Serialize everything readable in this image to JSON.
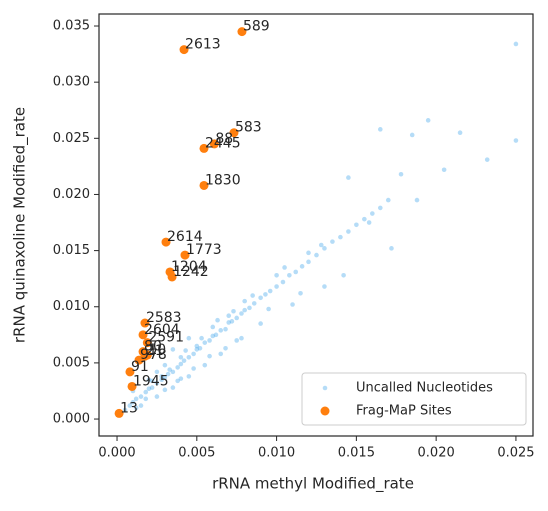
{
  "chart_data": {
    "type": "scatter",
    "xlabel": "rRNA methyl Modified_rate",
    "ylabel": "rRNA quinaxoline Modified_rate",
    "xlim": [
      -0.00113,
      0.02607
    ],
    "ylim": [
      -0.00151,
      0.03607
    ],
    "xticks": [
      {
        "value": 0,
        "label": "0.000"
      },
      {
        "value": 0.005,
        "label": "0.005"
      },
      {
        "value": 0.01,
        "label": "0.010"
      },
      {
        "value": 0.015,
        "label": "0.015"
      },
      {
        "value": 0.02,
        "label": "0.020"
      },
      {
        "value": 0.025,
        "label": "0.025"
      }
    ],
    "yticks": [
      {
        "value": 0,
        "label": "0.000"
      },
      {
        "value": 0.005,
        "label": "0.005"
      },
      {
        "value": 0.01,
        "label": "0.010"
      },
      {
        "value": 0.015,
        "label": "0.015"
      },
      {
        "value": 0.02,
        "label": "0.020"
      },
      {
        "value": 0.025,
        "label": "0.025"
      },
      {
        "value": 0.03,
        "label": "0.030"
      },
      {
        "value": 0.035,
        "label": "0.035"
      }
    ],
    "legend": "lower right",
    "series": [
      {
        "name": "Uncalled Nucleotides",
        "color": "#2b9be8",
        "x": [
          0.0005,
          0.0008,
          0.001,
          0.0012,
          0.0015,
          0.0018,
          0.002,
          0.0022,
          0.0025,
          0.0028,
          0.003,
          0.0032,
          0.0035,
          0.0038,
          0.004,
          0.0042,
          0.0045,
          0.0048,
          0.005,
          0.0052,
          0.0055,
          0.0058,
          0.006,
          0.0062,
          0.0065,
          0.0068,
          0.007,
          0.0072,
          0.0075,
          0.0078,
          0.008,
          0.0083,
          0.0086,
          0.009,
          0.0093,
          0.0096,
          0.01,
          0.0104,
          0.0108,
          0.0112,
          0.0116,
          0.012,
          0.0125,
          0.013,
          0.0135,
          0.014,
          0.0145,
          0.015,
          0.0155,
          0.016,
          0.0165,
          0.017,
          0.0178,
          0.0185,
          0.0195,
          0.0205,
          0.0215,
          0.0232,
          0.025,
          0.025,
          0.001,
          0.0015,
          0.002,
          0.0025,
          0.003,
          0.0035,
          0.004,
          0.0045,
          0.005,
          0.0055,
          0.006,
          0.0065,
          0.007,
          0.0075,
          0.008,
          0.009,
          0.01,
          0.011,
          0.012,
          0.013,
          0.0025,
          0.003,
          0.0035,
          0.004,
          0.0045,
          0.0012,
          0.0018,
          0.0022,
          0.0028,
          0.0033,
          0.0038,
          0.0043,
          0.0048,
          0.0053,
          0.0058,
          0.0063,
          0.0068,
          0.0073,
          0.0078,
          0.0085,
          0.0095,
          0.0105,
          0.0115,
          0.0128,
          0.0142,
          0.0158,
          0.0172,
          0.0188,
          0.0145,
          0.0165
        ],
        "values": [
          0.0008,
          0.0012,
          0.0015,
          0.0018,
          0.002,
          0.0024,
          0.0027,
          0.0028,
          0.0032,
          0.0035,
          0.0037,
          0.004,
          0.0042,
          0.0046,
          0.0049,
          0.0052,
          0.0055,
          0.0058,
          0.0062,
          0.0063,
          0.0068,
          0.007,
          0.0074,
          0.0075,
          0.0079,
          0.008,
          0.0086,
          0.0087,
          0.009,
          0.0094,
          0.0097,
          0.0099,
          0.0103,
          0.0108,
          0.0111,
          0.0114,
          0.0118,
          0.0122,
          0.0128,
          0.0131,
          0.0136,
          0.014,
          0.0146,
          0.0152,
          0.0158,
          0.0162,
          0.0167,
          0.0173,
          0.0178,
          0.0183,
          0.0188,
          0.0195,
          0.0218,
          0.0253,
          0.0266,
          0.0222,
          0.0255,
          0.0231,
          0.0334,
          0.0248,
          0.0025,
          0.0012,
          0.0035,
          0.002,
          0.0048,
          0.0028,
          0.0055,
          0.0038,
          0.0065,
          0.0048,
          0.0082,
          0.0058,
          0.0092,
          0.007,
          0.0105,
          0.0085,
          0.0128,
          0.0102,
          0.0148,
          0.0118,
          0.0042,
          0.0026,
          0.0062,
          0.0036,
          0.0072,
          0.001,
          0.0018,
          0.0034,
          0.0038,
          0.0044,
          0.0034,
          0.0061,
          0.0045,
          0.0072,
          0.0056,
          0.0088,
          0.0063,
          0.0096,
          0.0072,
          0.011,
          0.0098,
          0.0135,
          0.0112,
          0.0155,
          0.0128,
          0.0175,
          0.0152,
          0.0195,
          0.0215,
          0.0258
        ],
        "marker_size": 2.3,
        "alpha": 0.35
      },
      {
        "name": "Frag-MaP Sites",
        "color": "#ff7f0e",
        "x": [
          0.00783,
          0.0042,
          0.00733,
          0.00545,
          0.0061,
          0.00545,
          0.00307,
          0.00426,
          0.00332,
          0.00345,
          0.00175,
          0.00163,
          0.0019,
          0.00163,
          0.0019,
          0.00175,
          0.00138,
          0.00081,
          0.00094,
          0.00013
        ],
        "values": [
          0.0345,
          0.0329,
          0.0255,
          0.0241,
          0.0245,
          0.0208,
          0.01576,
          0.0146,
          0.0131,
          0.01265,
          0.00855,
          0.0075,
          0.0068,
          0.006,
          0.0057,
          0.0056,
          0.00525,
          0.0042,
          0.0029,
          0.0005
        ],
        "labels": [
          "589",
          "2613",
          "583",
          "2445",
          "88",
          "1830",
          "2614",
          "1773",
          "1204",
          "1242",
          "2583",
          "2604",
          "2591",
          "80",
          "10",
          "21",
          "978",
          "91",
          "1945",
          "13"
        ],
        "marker_size": 4.5,
        "alpha": 1
      }
    ]
  }
}
